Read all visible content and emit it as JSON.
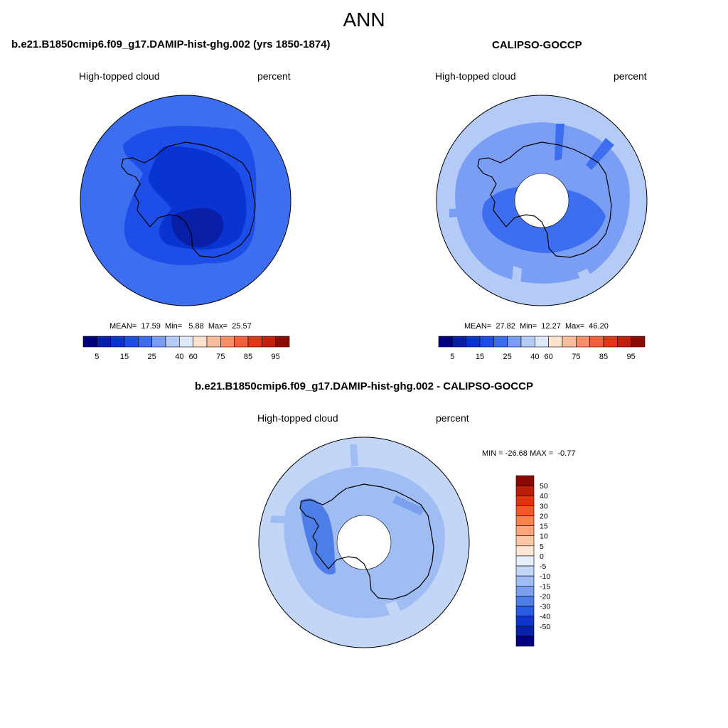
{
  "figure": {
    "title": "ANN"
  },
  "panels": {
    "model": {
      "title": "b.e21.B1850cmip6.f09_g17.DAMIP-hist-ghg.002 (yrs 1850-1874)",
      "left_label": "High-topped cloud",
      "right_label": "percent",
      "stats": {
        "mean_label": "MEAN=",
        "mean": "17.59",
        "min_label": "Min=",
        "min": "5.88",
        "max_label": "Max=",
        "max": "25.57"
      }
    },
    "obs": {
      "title": "CALIPSO-GOCCP",
      "left_label": "High-topped cloud",
      "right_label": "percent",
      "stats": {
        "mean_label": "MEAN=",
        "mean": "27.82",
        "min_label": "Min=",
        "min": "12.27",
        "max_label": "Max=",
        "max": "46.20"
      }
    },
    "diff": {
      "title": "b.e21.B1850cmip6.f09_g17.DAMIP-hist-ghg.002 - CALIPSO-GOCCP",
      "left_label": "High-topped cloud",
      "right_label": "percent",
      "minmax": "MIN = -26.68 MAX =  -0.77"
    }
  },
  "abs_colorbar": {
    "colors": [
      "#000080",
      "#0a1fa8",
      "#0a34d2",
      "#1d4fe8",
      "#3d6ef0",
      "#7b9ef5",
      "#b4cbf8",
      "#dde8fb",
      "#fde3cf",
      "#fbbe9c",
      "#f7906a",
      "#f2603c",
      "#e23716",
      "#c2200a",
      "#8a0a06"
    ],
    "tick_labels": [
      "5",
      "15",
      "25",
      "40",
      "60",
      "75",
      "85",
      "95"
    ]
  },
  "diff_colorbar": {
    "colors": [
      "#8a0a06",
      "#bb1d08",
      "#e0340f",
      "#f45a26",
      "#f8834f",
      "#fba57c",
      "#fcc7a6",
      "#fde6d4",
      "#e5eefb",
      "#c4d6f7",
      "#9fbcf3",
      "#7aa0ef",
      "#4d7ee8",
      "#2a5ce3",
      "#0f36cc",
      "#0821a6",
      "#000080"
    ],
    "tick_labels": [
      "50",
      "40",
      "30",
      "20",
      "15",
      "10",
      "5",
      "0",
      "-5",
      "-10",
      "-15",
      "-20",
      "-30",
      "-40",
      "-50"
    ]
  },
  "map_colors": {
    "model_base": "#3d6ef0",
    "model_mid": "#1d4fe8",
    "model_deep": "#0a34d2",
    "model_core": "#0a1fa8",
    "obs_base": "#b4cbf8",
    "obs_mid": "#7b9ef5",
    "obs_deep": "#3d6ef0",
    "diff_base": "#c4d6f7",
    "diff_mid": "#9fbcf3",
    "diff_deep": "#4d7ee8",
    "coast": "#000000"
  }
}
